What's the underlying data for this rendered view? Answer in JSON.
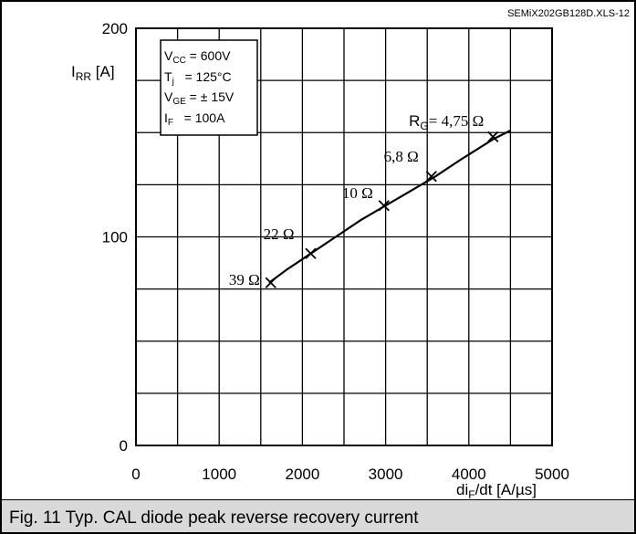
{
  "file_label": "SEMiX202GB128D.XLS-12",
  "caption": "Fig. 11 Typ. CAL diode peak reverse recovery current",
  "conditions": [
    {
      "main": "V",
      "sub": "CC",
      "rest": " = 600V"
    },
    {
      "main": "T",
      "sub": "j",
      "rest": "   = 125°C"
    },
    {
      "main": "V",
      "sub": "GE",
      "rest": " = ± 15V"
    },
    {
      "main": "I",
      "sub": "F",
      "rest": "   = 100A"
    }
  ],
  "chart_data": {
    "type": "line",
    "title": "",
    "xlabel": {
      "main": "di",
      "sub": "F",
      "rest": "/dt [A/µs]"
    },
    "ylabel": {
      "main": "I",
      "sub": "RR",
      "rest": " [A]"
    },
    "xlim": [
      0,
      5000
    ],
    "ylim": [
      0,
      200
    ],
    "x_ticks": [
      0,
      1000,
      2000,
      3000,
      4000,
      5000
    ],
    "y_ticks": [
      0,
      100,
      200
    ],
    "x_grid_step": 500,
    "y_grid_step": 25,
    "grid": true,
    "series": [
      {
        "x": [
          1600,
          1800,
          2100,
          2400,
          2700,
          3000,
          3300,
          3600,
          3900,
          4300,
          4500
        ],
        "y": [
          78,
          84,
          92,
          100,
          108,
          115,
          122,
          129,
          137,
          147,
          151
        ]
      }
    ],
    "markers": [
      {
        "x": 1620,
        "y": 78,
        "label": "39 Ω"
      },
      {
        "x": 2100,
        "y": 92,
        "label": "22 Ω"
      },
      {
        "x": 2980,
        "y": 115,
        "label": "10 Ω"
      },
      {
        "x": 3550,
        "y": 129,
        "label": "6,8 Ω"
      },
      {
        "x": 4290,
        "y": 148,
        "label_main": "R",
        "label_sub": "G",
        "label_rest": "= 4,75 Ω"
      }
    ]
  }
}
